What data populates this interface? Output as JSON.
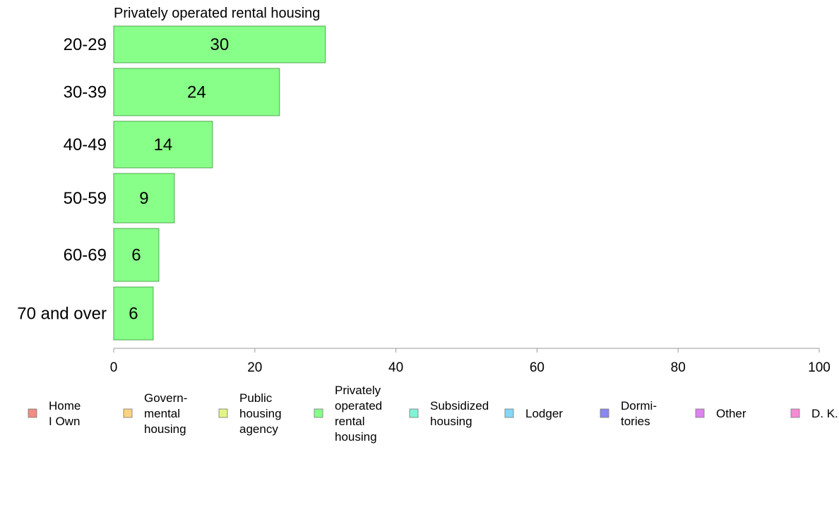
{
  "chart_data": {
    "type": "bar",
    "orientation": "horizontal",
    "title": "Privately operated rental housing",
    "categories": [
      "20-29",
      "30-39",
      "40-49",
      "50-59",
      "60-69",
      "70 and over"
    ],
    "values": [
      30,
      24,
      14,
      9,
      6,
      6
    ],
    "value_labels": [
      30,
      23.5,
      14,
      8.6,
      6.4,
      5.6
    ],
    "bar_color": "#88ff88",
    "bar_edge_color": "#4faa4f",
    "xlim": [
      0,
      100
    ],
    "xticks": [
      0,
      20,
      40,
      60,
      80,
      100
    ],
    "xlabel": "",
    "ylabel": "",
    "grid": false,
    "legend_position": "bottom",
    "legend": [
      {
        "lines": [
          "Home",
          "I Own"
        ],
        "color": "#f28b82"
      },
      {
        "lines": [
          "Govern-",
          "mental",
          " housing"
        ],
        "color": "#ffd27f"
      },
      {
        "lines": [
          "Public",
          "housing",
          "agency"
        ],
        "color": "#e2f584"
      },
      {
        "lines": [
          "Privately",
          "operated",
          "rental",
          "housing"
        ],
        "color": "#88ff88"
      },
      {
        "lines": [
          "Subsidized",
          " housing"
        ],
        "color": "#7ff5d6"
      },
      {
        "lines": [
          "Lodger"
        ],
        "color": "#84d8f5"
      },
      {
        "lines": [
          "Dormi-",
          "tories"
        ],
        "color": "#8888ee"
      },
      {
        "lines": [
          "Other"
        ],
        "color": "#dd82f0"
      },
      {
        "lines": [
          "D. K."
        ],
        "color": "#f78ad6"
      }
    ]
  }
}
